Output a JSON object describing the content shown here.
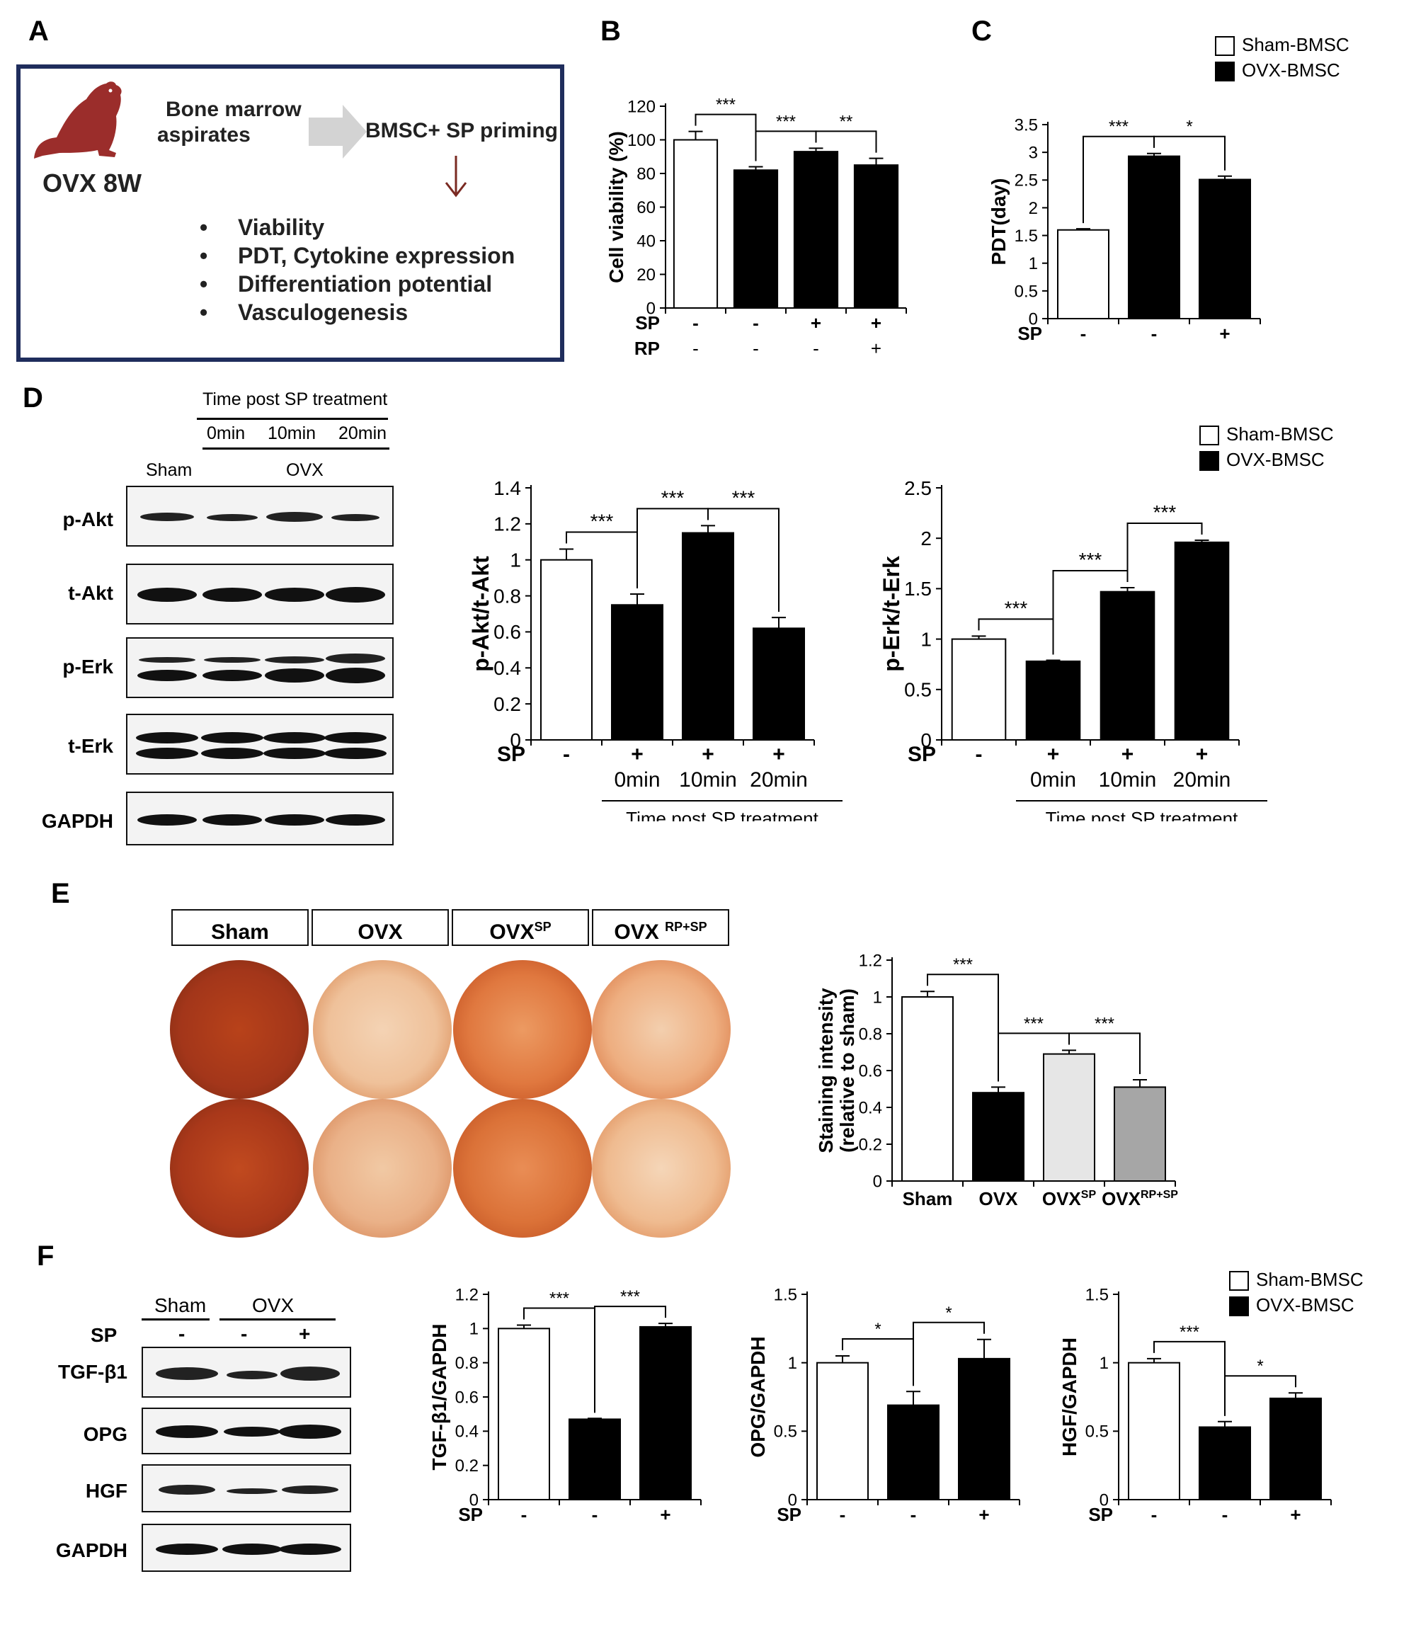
{
  "panel_letters": {
    "A": "A",
    "B": "B",
    "C": "C",
    "D": "D",
    "E": "E",
    "F": "F"
  },
  "panelA": {
    "model_label": "OVX 8W",
    "source_line1": "Bone marrow",
    "source_line2": "aspirates",
    "treatment": "BMSC+ SP priming",
    "bullets": [
      "Viability",
      "PDT, Cytokine expression",
      "Differentiation potential",
      "Vasculogenesis"
    ]
  },
  "legend": {
    "sham": "Sham-BMSC",
    "ovx": "OVX-BMSC"
  },
  "panelD_blot": {
    "time_header": "Time post SP treatment",
    "times": [
      "0min",
      "10min",
      "20min"
    ],
    "group_sham": "Sham",
    "group_ovx": "OVX",
    "rows": [
      "p-Akt",
      "t-Akt",
      "p-Erk",
      "t-Erk",
      "GAPDH"
    ]
  },
  "panelE": {
    "headers": [
      "Sham",
      "OVX",
      "OVX",
      "OVX "
    ],
    "header_sups": [
      "",
      "",
      "SP",
      "RP+SP"
    ]
  },
  "panelF_blot": {
    "group_sham": "Sham",
    "group_ovx": "OVX",
    "sp_label": "SP",
    "sp_values": [
      "-",
      "-",
      "+"
    ],
    "rows": [
      "TGF-β1",
      "OPG",
      "HGF",
      "GAPDH"
    ]
  },
  "colors": {
    "black": "#000000",
    "white": "#ffffff",
    "light_gray": "#e6e6e6",
    "gray": "#a6a6a6",
    "stain_dark": "#9c2d0e",
    "stain_light": "#f2c29a",
    "box_border": "#1f2d5c",
    "rat": "#9b2d2b",
    "arrow": "#cfcfcf"
  },
  "chart_data": [
    {
      "id": "B",
      "type": "bar",
      "ylabel": "Cell viability (%)",
      "ylim": [
        0,
        120
      ],
      "yticks": [
        0,
        20,
        40,
        60,
        80,
        100,
        120
      ],
      "values": [
        100,
        82,
        93,
        85
      ],
      "errors": [
        5,
        2,
        2,
        4
      ],
      "fills": [
        "white",
        "black",
        "black",
        "black"
      ],
      "rows": [
        {
          "label": "SP",
          "values": [
            "-",
            "-",
            "+",
            "+"
          ]
        },
        {
          "label": "RP",
          "values": [
            "-",
            "-",
            "-",
            "+"
          ]
        }
      ],
      "sig": [
        {
          "a": 0,
          "b": 1,
          "text": "***"
        },
        {
          "a": 1,
          "b": 2,
          "text": "***"
        },
        {
          "a": 2,
          "b": 3,
          "text": "**"
        }
      ]
    },
    {
      "id": "C",
      "type": "bar",
      "ylabel": "PDT(day)",
      "ylim": [
        0,
        3.5
      ],
      "yticks": [
        0,
        0.5,
        1,
        1.5,
        2,
        2.5,
        3,
        3.5
      ],
      "values": [
        1.6,
        2.93,
        2.51
      ],
      "errors": [
        0.02,
        0.05,
        0.06
      ],
      "fills": [
        "white",
        "black",
        "black"
      ],
      "rows": [
        {
          "label": "SP",
          "values": [
            "-",
            "-",
            "+"
          ]
        }
      ],
      "sig": [
        {
          "a": 0,
          "b": 1,
          "text": "***"
        },
        {
          "a": 1,
          "b": 2,
          "text": "*"
        }
      ]
    },
    {
      "id": "D1",
      "type": "bar",
      "ylabel": "p-Akt/t-Akt",
      "ylim": [
        0,
        1.4
      ],
      "yticks": [
        0,
        0.2,
        0.4,
        0.6,
        0.8,
        1,
        1.2,
        1.4
      ],
      "values": [
        1.0,
        0.75,
        1.15,
        0.62
      ],
      "errors": [
        0.06,
        0.06,
        0.04,
        0.06
      ],
      "fills": [
        "white",
        "black",
        "black",
        "black"
      ],
      "rows": [
        {
          "label": "SP",
          "values": [
            "-",
            "+",
            "+",
            "+"
          ]
        },
        {
          "label": "",
          "values": [
            "",
            "0min",
            "10min",
            "20min"
          ]
        }
      ],
      "caption": "Time post SP treatment",
      "sig": [
        {
          "a": 0,
          "b": 1,
          "text": "***"
        },
        {
          "a": 1,
          "b": 2,
          "text": "***"
        },
        {
          "a": 2,
          "b": 3,
          "text": "***"
        }
      ]
    },
    {
      "id": "D2",
      "type": "bar",
      "ylabel": "p-Erk/t-Erk",
      "ylim": [
        0,
        2.5
      ],
      "yticks": [
        0,
        0.5,
        1,
        1.5,
        2,
        2.5
      ],
      "values": [
        1.0,
        0.78,
        1.47,
        1.96
      ],
      "errors": [
        0.03,
        0.01,
        0.04,
        0.02
      ],
      "fills": [
        "white",
        "black",
        "black",
        "black"
      ],
      "rows": [
        {
          "label": "SP",
          "values": [
            "-",
            "+",
            "+",
            "+"
          ]
        },
        {
          "label": "",
          "values": [
            "",
            "0min",
            "10min",
            "20min"
          ]
        }
      ],
      "caption": "Time post SP treatment",
      "sig": [
        {
          "a": 0,
          "b": 1,
          "text": "***"
        },
        {
          "a": 1,
          "b": 2,
          "text": "***"
        },
        {
          "a": 2,
          "b": 3,
          "text": "***"
        }
      ]
    },
    {
      "id": "E",
      "type": "bar",
      "ylabel": "Staining intensity",
      "ylabel2": "(relative to sham)",
      "ylim": [
        0,
        1.2
      ],
      "yticks": [
        0,
        0.2,
        0.4,
        0.6,
        0.8,
        1,
        1.2
      ],
      "values": [
        1.0,
        0.48,
        0.69,
        0.51
      ],
      "errors": [
        0.03,
        0.03,
        0.02,
        0.04
      ],
      "fills": [
        "white",
        "black",
        "light_gray",
        "gray"
      ],
      "categories": [
        "Sham",
        "OVX",
        "OVX",
        "OVX"
      ],
      "category_sups": [
        "",
        "",
        "SP",
        "RP+SP"
      ],
      "sig": [
        {
          "a": 0,
          "b": 1,
          "text": "***"
        },
        {
          "a": 1,
          "b": 2,
          "text": "***"
        },
        {
          "a": 2,
          "b": 3,
          "text": "***"
        }
      ]
    },
    {
      "id": "F1",
      "type": "bar",
      "ylabel": "TGF-β1/GAPDH",
      "ylim": [
        0,
        1.2
      ],
      "yticks": [
        0,
        0.2,
        0.4,
        0.6,
        0.8,
        1,
        1.2
      ],
      "values": [
        1.0,
        0.47,
        1.01
      ],
      "errors": [
        0.02,
        0.005,
        0.02
      ],
      "fills": [
        "white",
        "black",
        "black"
      ],
      "rows": [
        {
          "label": "SP",
          "values": [
            "-",
            "-",
            "+"
          ]
        }
      ],
      "sig": [
        {
          "a": 0,
          "b": 1,
          "text": "***"
        },
        {
          "a": 1,
          "b": 2,
          "text": "***"
        }
      ]
    },
    {
      "id": "F2",
      "type": "bar",
      "ylabel": "OPG/GAPDH",
      "ylim": [
        0,
        1.5
      ],
      "yticks": [
        0,
        0.5,
        1,
        1.5
      ],
      "values": [
        1.0,
        0.69,
        1.03
      ],
      "errors": [
        0.05,
        0.1,
        0.14
      ],
      "fills": [
        "white",
        "black",
        "black"
      ],
      "rows": [
        {
          "label": "SP",
          "values": [
            "-",
            "-",
            "+"
          ]
        }
      ],
      "sig": [
        {
          "a": 0,
          "b": 1,
          "text": "*"
        },
        {
          "a": 1,
          "b": 2,
          "text": "*"
        }
      ]
    },
    {
      "id": "F3",
      "type": "bar",
      "ylabel": "HGF/GAPDH",
      "ylim": [
        0,
        1.5
      ],
      "yticks": [
        0,
        0.5,
        1,
        1.5
      ],
      "values": [
        1.0,
        0.53,
        0.74
      ],
      "errors": [
        0.03,
        0.04,
        0.04
      ],
      "fills": [
        "white",
        "black",
        "black"
      ],
      "rows": [
        {
          "label": "SP",
          "values": [
            "-",
            "-",
            "+"
          ]
        }
      ],
      "sig": [
        {
          "a": 0,
          "b": 1,
          "text": "***"
        },
        {
          "a": 1,
          "b": 2,
          "text": "*"
        }
      ]
    }
  ]
}
